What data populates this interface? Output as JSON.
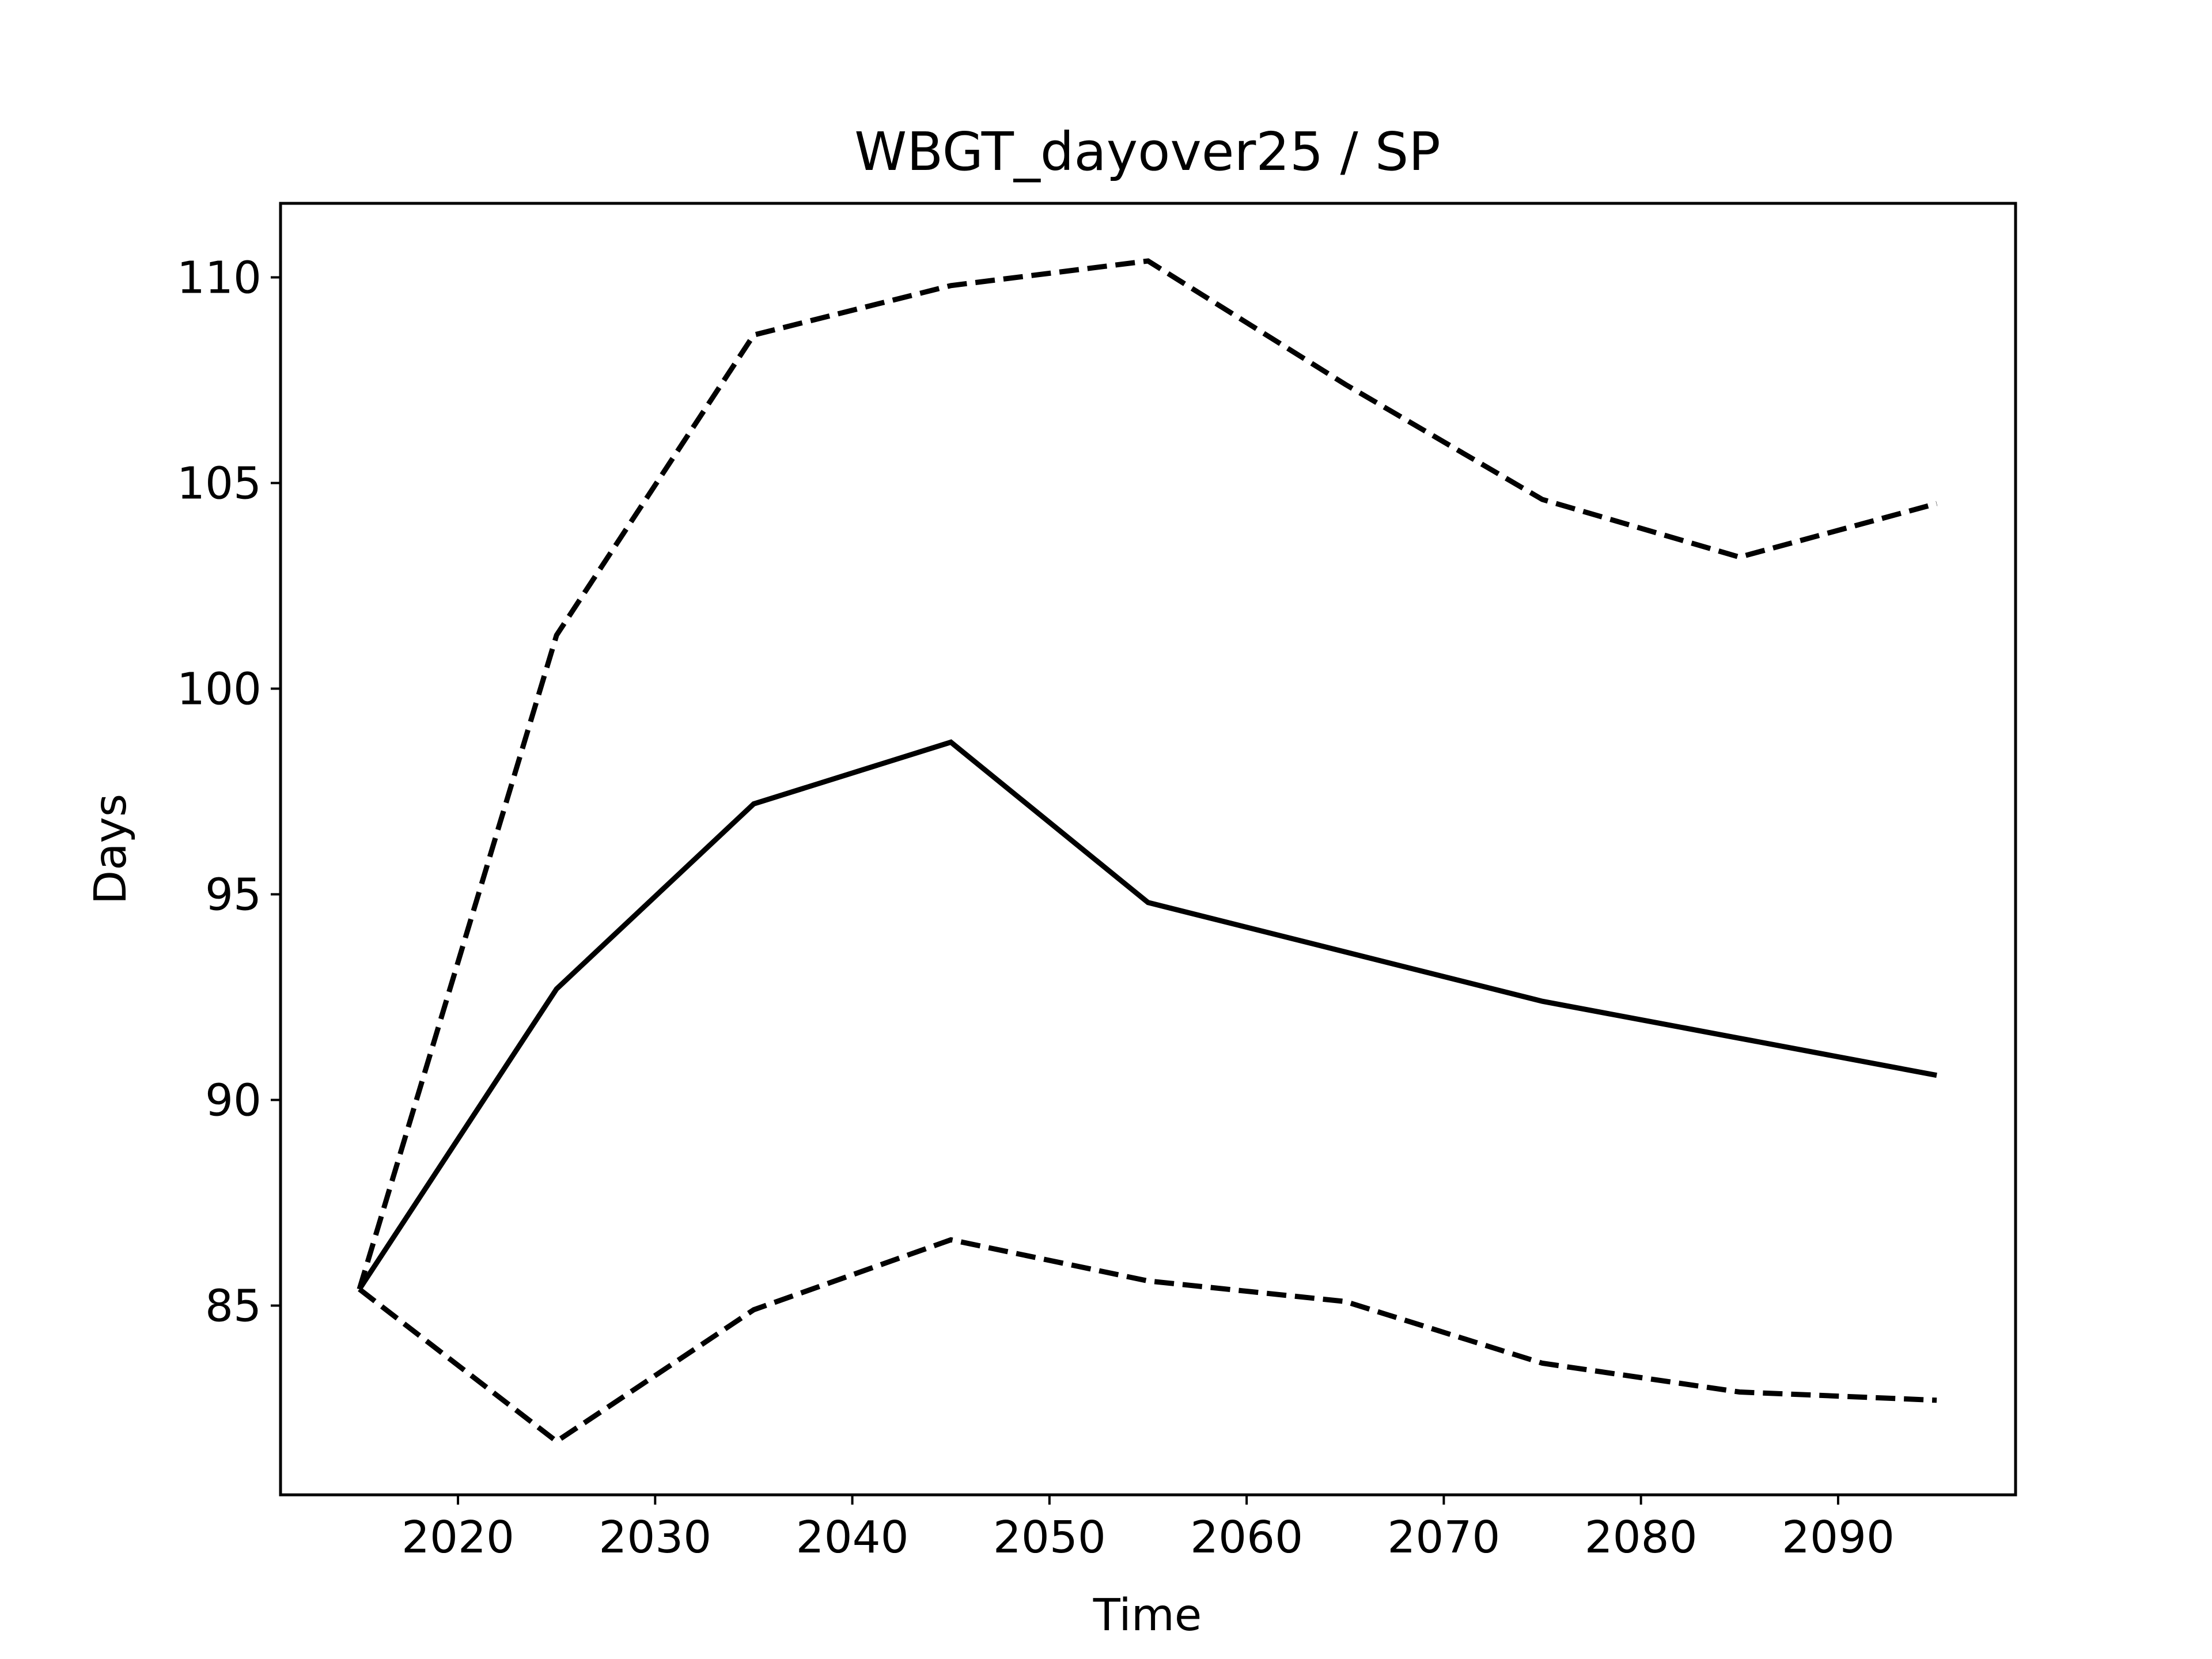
{
  "chart_data": {
    "type": "line",
    "title": "WBGT_dayover25 / SP",
    "xlabel": "Time",
    "ylabel": "Days",
    "xlim": [
      2011,
      2099
    ],
    "ylim": [
      80.4,
      111.8
    ],
    "x_ticks": [
      2020,
      2030,
      2040,
      2050,
      2060,
      2070,
      2080,
      2090
    ],
    "y_ticks": [
      85,
      90,
      95,
      100,
      105,
      110
    ],
    "grid": false,
    "x": [
      2015,
      2025,
      2035,
      2045,
      2055,
      2065,
      2075,
      2085,
      2095
    ],
    "series": [
      {
        "style": "dashed",
        "color": "#000000",
        "values": [
          85.4,
          101.3,
          108.6,
          109.8,
          110.4,
          107.4,
          104.6,
          103.2,
          104.5
        ]
      },
      {
        "style": "solid",
        "color": "#000000",
        "values": [
          85.4,
          92.7,
          97.2,
          98.7,
          94.8,
          93.6,
          92.4,
          91.5,
          90.6
        ]
      },
      {
        "style": "dashed",
        "color": "#000000",
        "values": [
          85.4,
          81.7,
          84.9,
          86.6,
          85.6,
          85.1,
          83.6,
          82.9,
          82.7
        ]
      }
    ]
  }
}
